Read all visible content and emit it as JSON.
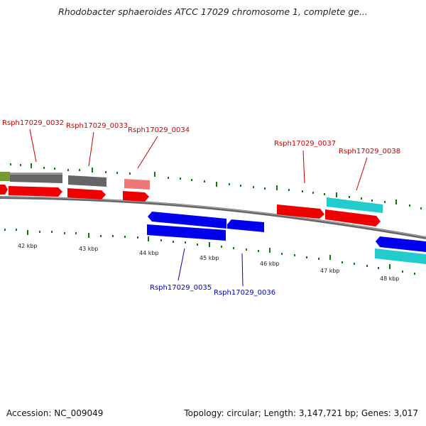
{
  "title": "Rhodobacter sphaeroides ATCC 17029 chromosome 1, complete ge...",
  "footer": {
    "accession": "Accession: NC_009049",
    "summary": "Topology: circular; Length: 3,147,721 bp; Genes: 3,017"
  },
  "colors": {
    "forward_gene": "#ee0000",
    "reverse_gene": "#0000ee",
    "forward_other": "#666666",
    "forward_light": "#ee7777",
    "cyan_feature": "#22cccc",
    "olive_feature": "#779933",
    "tick": "#117711",
    "label_forward": "#cc0000",
    "label_reverse": "#0000bb"
  },
  "scale_labels": [
    "42 kbp",
    "43 kbp",
    "44 kbp",
    "45 kbp",
    "46 kbp",
    "47 kbp",
    "48 kbp"
  ],
  "gene_labels": {
    "g0032": "Rsph17029_0032",
    "g0033": "Rsph17029_0033",
    "g0034": "Rsph17029_0034",
    "g0035": "Rsph17029_0035",
    "g0036": "Rsph17029_0036",
    "g0037": "Rsph17029_0037",
    "g0038": "Rsph17029_0038"
  }
}
